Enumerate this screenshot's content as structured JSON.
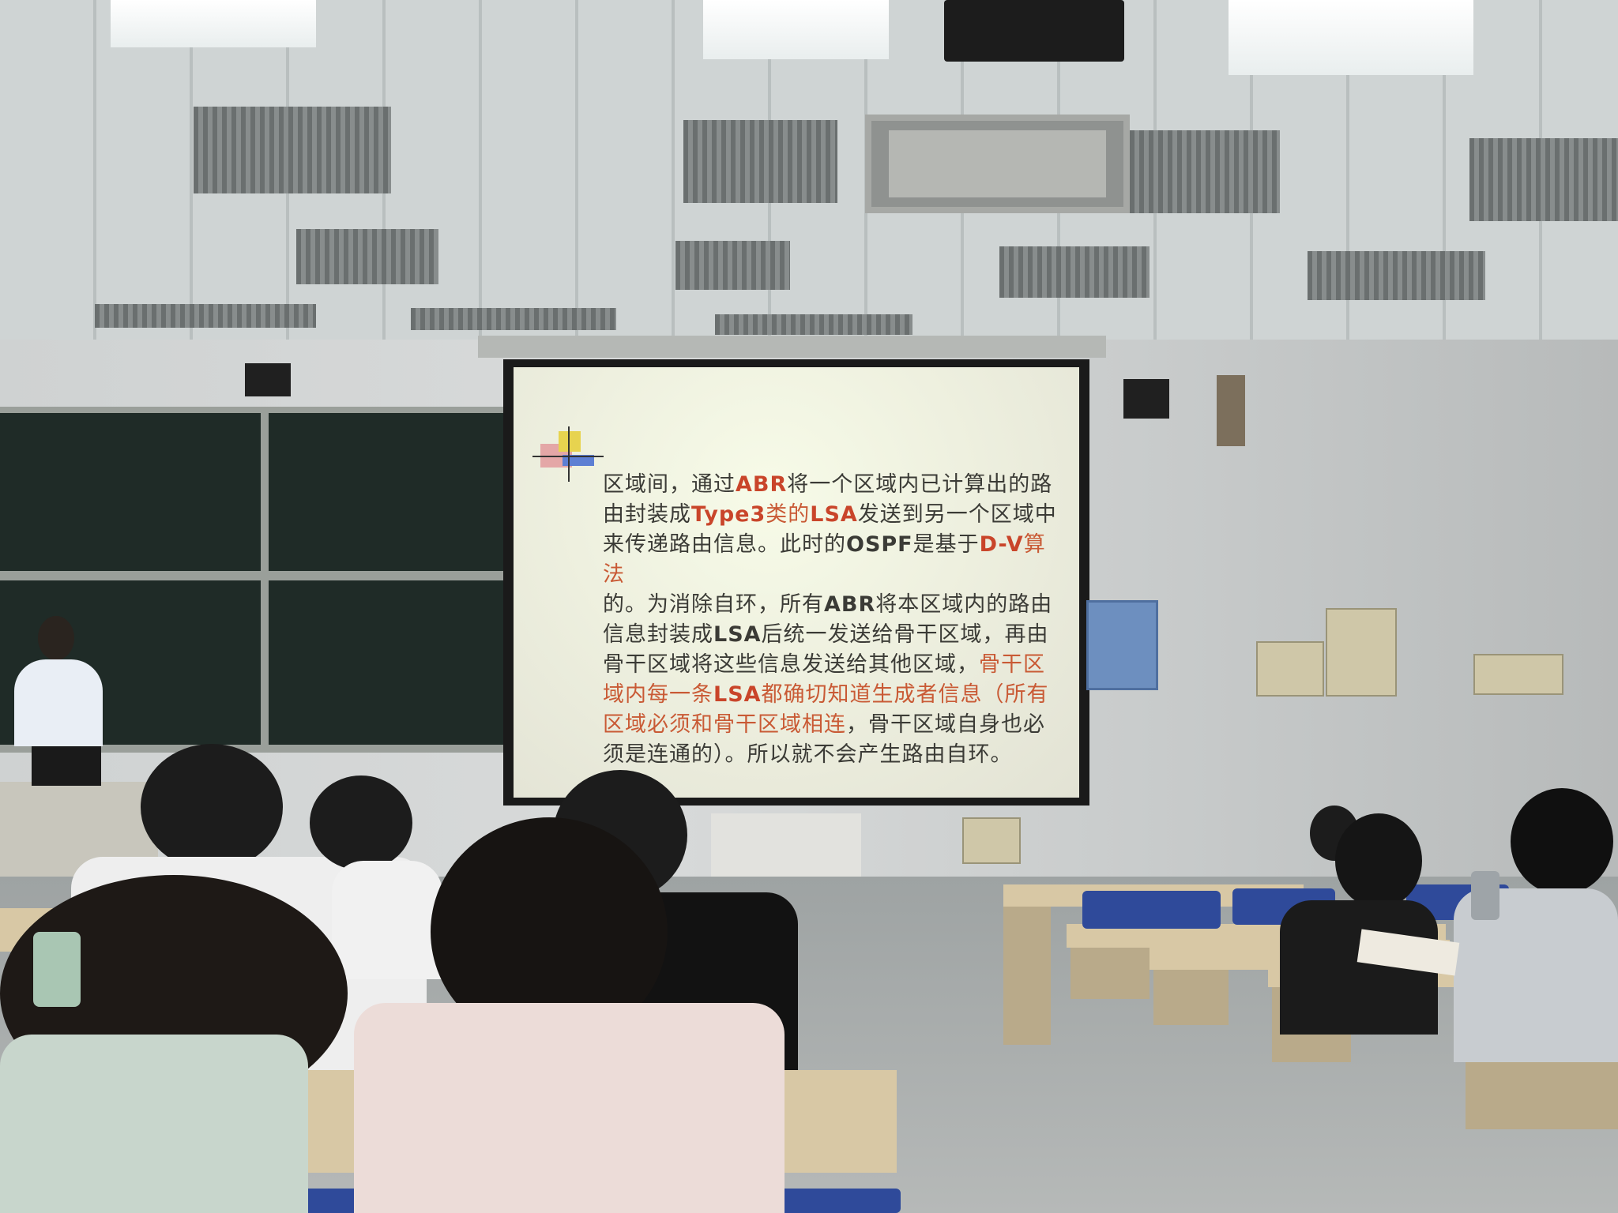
{
  "scene": "classroom lecture with projected slide",
  "slide": {
    "segments": [
      {
        "text": "区域间，通过",
        "style": "plain"
      },
      {
        "text": "ABR",
        "style": "red"
      },
      {
        "text": "将一个区域内已计算出的路\n由封装成",
        "style": "plain"
      },
      {
        "text": "Type3",
        "style": "red"
      },
      {
        "text": "类的",
        "style": "orange"
      },
      {
        "text": "LSA",
        "style": "red"
      },
      {
        "text": "发送到另一个区域中\n来传递路由信息。此时的",
        "style": "plain"
      },
      {
        "text": "OSPF",
        "style": "bold"
      },
      {
        "text": "是基于",
        "style": "plain"
      },
      {
        "text": "D-V",
        "style": "red"
      },
      {
        "text": "算法",
        "style": "orange"
      },
      {
        "text": "\n的。为消除自环，所有",
        "style": "plain"
      },
      {
        "text": "ABR",
        "style": "bold"
      },
      {
        "text": "将本区域内的路由\n信息封装成",
        "style": "plain"
      },
      {
        "text": "LSA",
        "style": "bold"
      },
      {
        "text": "后统一发送给骨干区域，再由\n骨干区域将这些信息发送给其他区域，",
        "style": "plain"
      },
      {
        "text": "骨干区\n域内每一条",
        "style": "orange"
      },
      {
        "text": "LSA",
        "style": "red"
      },
      {
        "text": "都确切知道生成者信息（所有\n区域必须和骨干区域相连",
        "style": "orange"
      },
      {
        "text": "，骨干区域自身也必\n须是连通的）。所以就不会产生路由自环。",
        "style": "plain"
      }
    ]
  },
  "colors": {
    "slide_red": "#c9452a",
    "slide_orange": "#c95a35",
    "chair_blue": "#2f4a9a",
    "board_green": "#1f2b27"
  }
}
